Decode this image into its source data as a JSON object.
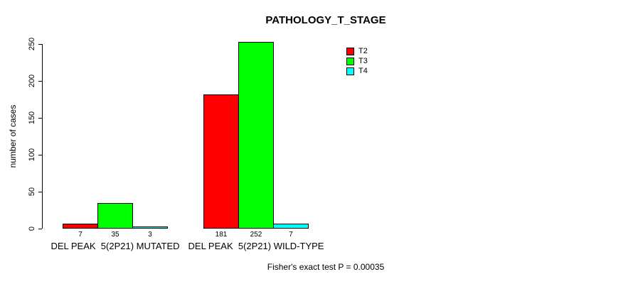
{
  "chart_data": {
    "type": "bar",
    "title": "PATHOLOGY_T_STAGE",
    "ylabel": "number of cases",
    "xlabel": "",
    "ylim": [
      0,
      250
    ],
    "yticks": [
      0,
      50,
      100,
      150,
      200,
      250
    ],
    "categories": [
      "DEL PEAK  5(2P21) MUTATED",
      "DEL PEAK  5(2P21) WILD-TYPE"
    ],
    "series": [
      {
        "name": "T2",
        "color": "#ff0000",
        "values": [
          7,
          181
        ]
      },
      {
        "name": "T3",
        "color": "#00ff00",
        "values": [
          35,
          252
        ]
      },
      {
        "name": "T4",
        "color": "#00ffff",
        "values": [
          3,
          7
        ]
      }
    ],
    "bar_value_labels_shown": true,
    "legend_position": "top-right",
    "grid": false,
    "annotation": "Fisher's exact test P = 0.00035",
    "colors": {
      "background": "#ffffff",
      "axis": "#000000",
      "text": "#000000"
    }
  }
}
